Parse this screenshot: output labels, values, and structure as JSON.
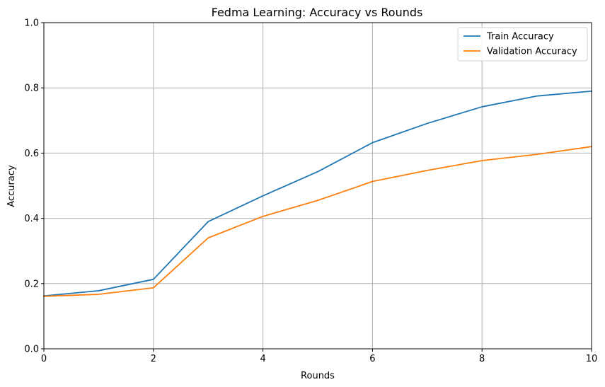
{
  "chart_data": {
    "type": "line",
    "title": "Fedma Learning: Accuracy vs Rounds",
    "xlabel": "Rounds",
    "ylabel": "Accuracy",
    "x": [
      0,
      1,
      2,
      3,
      4,
      5,
      6,
      7,
      8,
      9,
      10
    ],
    "xlim": [
      0,
      10
    ],
    "ylim": [
      0,
      1
    ],
    "xticks": [
      0,
      2,
      4,
      6,
      8,
      10
    ],
    "yticks": [
      0.0,
      0.2,
      0.4,
      0.6,
      0.8,
      1.0
    ],
    "xtick_labels": [
      "0",
      "2",
      "4",
      "6",
      "8",
      "10"
    ],
    "ytick_labels": [
      "0.0",
      "0.2",
      "0.4",
      "0.6",
      "0.8",
      "1.0"
    ],
    "grid": true,
    "legend_position": "top-right",
    "series": [
      {
        "name": "Train Accuracy",
        "color": "#1f77b4",
        "values": [
          0.162,
          0.178,
          0.213,
          0.39,
          0.469,
          0.543,
          0.632,
          0.691,
          0.742,
          0.775,
          0.79
        ]
      },
      {
        "name": "Validation Accuracy",
        "color": "#ff7f0e",
        "values": [
          0.161,
          0.167,
          0.187,
          0.34,
          0.406,
          0.455,
          0.513,
          0.547,
          0.577,
          0.596,
          0.62
        ]
      }
    ]
  }
}
